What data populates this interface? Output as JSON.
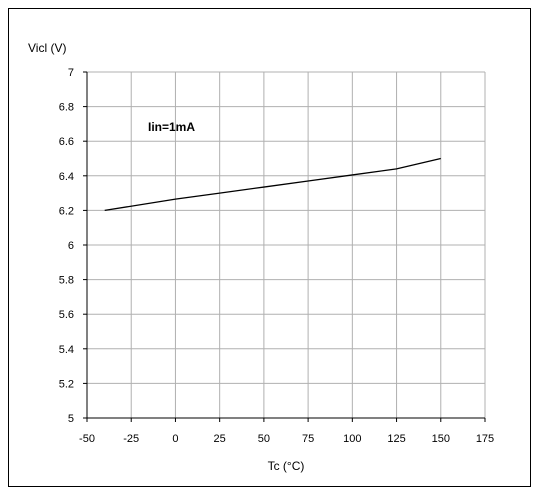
{
  "chart_data": {
    "type": "line",
    "title": "",
    "ylabel": "Vicl (V)",
    "xlabel": "Tc (°C)",
    "xlim": [
      -50,
      175
    ],
    "ylim": [
      5,
      7
    ],
    "x_ticks": [
      -50,
      -25,
      0,
      25,
      50,
      75,
      100,
      125,
      150,
      175
    ],
    "y_ticks": [
      5,
      5.2,
      5.4,
      5.6,
      5.8,
      6,
      6.2,
      6.4,
      6.6,
      6.8,
      7
    ],
    "grid": true,
    "annotations": [
      {
        "text": "Iin=1mA"
      }
    ],
    "series": [
      {
        "x": [
          -40,
          0,
          25,
          50,
          75,
          100,
          125,
          150
        ],
        "y": [
          6.2,
          6.265,
          6.3,
          6.335,
          6.37,
          6.405,
          6.44,
          6.5
        ]
      }
    ]
  }
}
